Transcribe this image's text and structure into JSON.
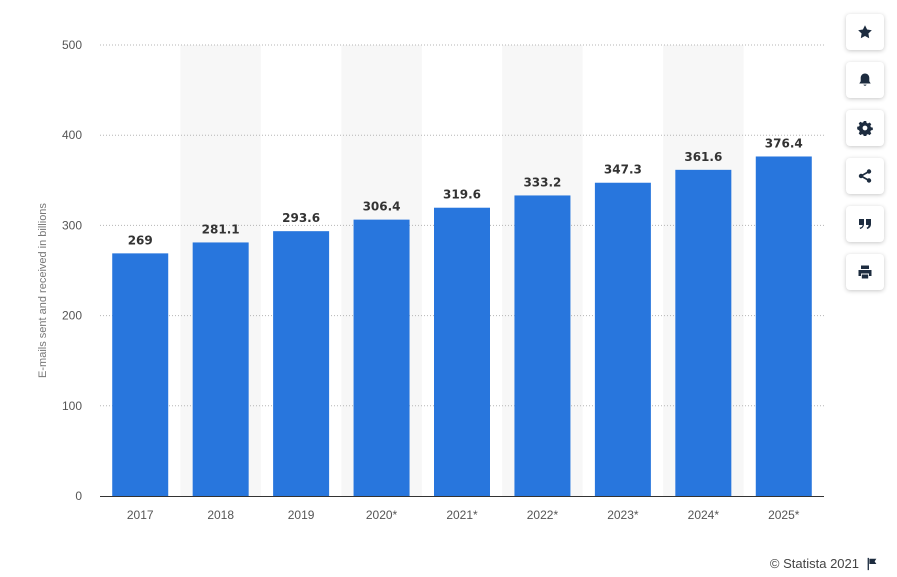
{
  "chart_data": {
    "type": "bar",
    "categories": [
      "2017",
      "2018",
      "2019",
      "2020*",
      "2021*",
      "2022*",
      "2023*",
      "2024*",
      "2025*"
    ],
    "values": [
      269,
      281.1,
      293.6,
      306.4,
      319.6,
      333.2,
      347.3,
      361.6,
      376.4
    ],
    "value_labels": [
      "269",
      "281.1",
      "293.6",
      "306.4",
      "319.6",
      "333.2",
      "347.3",
      "361.6",
      "376.4"
    ],
    "ylabel": "E-mails sent and received in billions",
    "xlabel": "",
    "ylim": [
      0,
      500
    ],
    "yticks": [
      0,
      100,
      200,
      300,
      400,
      500
    ],
    "grid": true,
    "bar_color": "#2876dd",
    "band_color": "#f7f7f7"
  },
  "toolbar": {
    "buttons": [
      {
        "name": "favorite-button",
        "icon": "star-icon"
      },
      {
        "name": "notification-button",
        "icon": "bell-icon"
      },
      {
        "name": "settings-button",
        "icon": "gear-icon"
      },
      {
        "name": "share-button",
        "icon": "share-icon"
      },
      {
        "name": "cite-button",
        "icon": "quote-icon"
      },
      {
        "name": "print-button",
        "icon": "print-icon"
      }
    ]
  },
  "footer": {
    "credit": "© Statista 2021",
    "flag_icon": "flag-icon"
  }
}
